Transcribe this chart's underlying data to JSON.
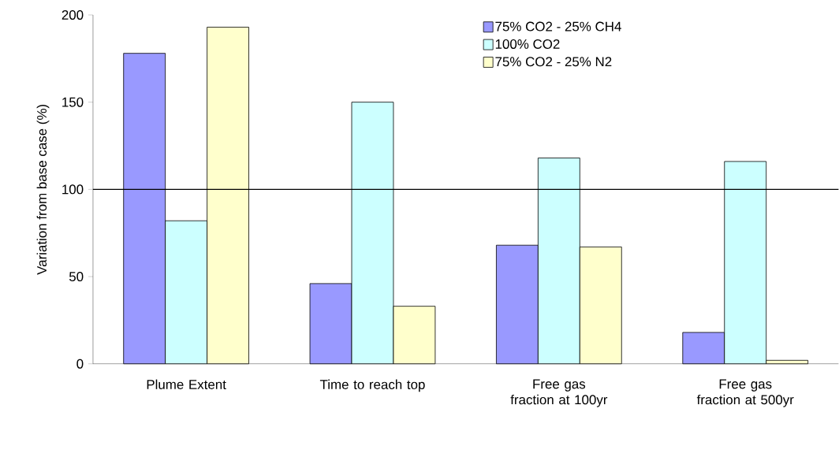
{
  "chart_data": {
    "type": "bar",
    "ylabel": "Variation from base case (%)",
    "categories": [
      "Plume Extent",
      "Time to reach top",
      "Free gas fraction at 100yr",
      "Free gas fraction at 500yr"
    ],
    "series": [
      {
        "name": "75% CO2 - 25% CH4",
        "color": "#9999ff",
        "values": [
          178,
          46,
          68,
          18
        ]
      },
      {
        "name": "100% CO2",
        "color": "#ccffff",
        "values": [
          82,
          150,
          118,
          116
        ]
      },
      {
        "name": "75% CO2 - 25% N2",
        "color": "#ffffcc",
        "values": [
          193,
          33,
          67,
          2
        ]
      }
    ],
    "ylim": [
      0,
      200
    ],
    "yticks": [
      0,
      50,
      100,
      150,
      200
    ],
    "ref_lines": [
      {
        "axis": "y",
        "value": 100,
        "color": "#000000"
      }
    ],
    "legend": "top right",
    "grid": false
  }
}
